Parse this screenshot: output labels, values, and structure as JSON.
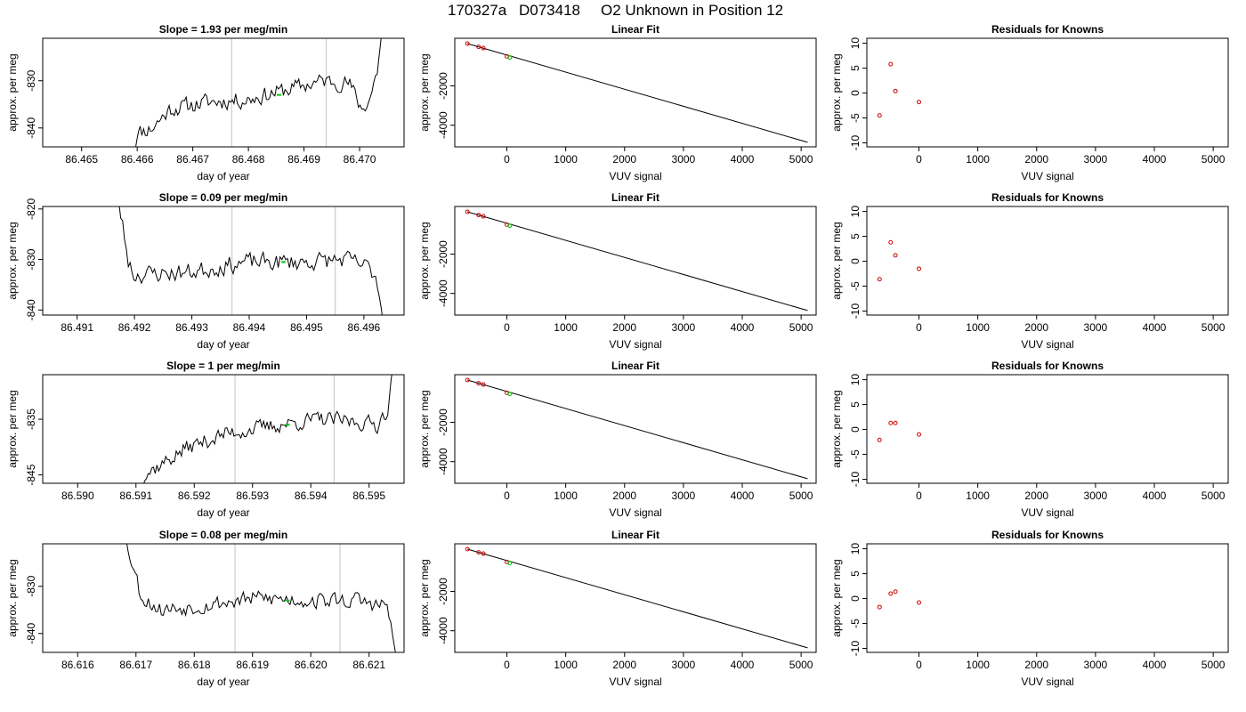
{
  "title": {
    "run": "170327a",
    "tank": "D073418",
    "text": "O2 Unknown in Position  12"
  },
  "colors": {
    "trace": "#000000",
    "window": "#cccccc",
    "known": "#cc0000",
    "unknown": "#00cc00"
  },
  "chart_data": [
    {
      "type": "line",
      "row": 1,
      "col": 1,
      "title": "Slope =  1.93  per meg/min",
      "xlabel": "day of year",
      "ylabel": "approx. per meg",
      "xlim": [
        86.4643,
        86.4708
      ],
      "ylim": [
        -844,
        -821
      ],
      "xticks": [
        86.465,
        86.466,
        86.467,
        86.468,
        86.469,
        86.47
      ],
      "xtick_labels": [
        "86.465",
        "86.466",
        "86.467",
        "86.468",
        "86.469",
        "86.470"
      ],
      "yticks": [
        -840,
        -830
      ],
      "yticks_labels": [
        "-840",
        "-830"
      ],
      "window_lines": [
        86.4677,
        86.4694
      ],
      "unknown_point": {
        "x": 86.46855,
        "y": -833
      },
      "trace": {
        "x_start": 86.4659,
        "x_end": 86.4705,
        "n": 150,
        "seed": 11,
        "anchors": [
          [
            0,
            -850
          ],
          [
            0.02,
            -841
          ],
          [
            0.08,
            -840
          ],
          [
            0.15,
            -836
          ],
          [
            0.3,
            -834.5
          ],
          [
            0.45,
            -834
          ],
          [
            0.6,
            -832
          ],
          [
            0.75,
            -830
          ],
          [
            0.85,
            -830.5
          ],
          [
            0.9,
            -836
          ],
          [
            0.93,
            -834
          ],
          [
            0.96,
            -828
          ],
          [
            1,
            -810
          ]
        ],
        "amp": 1.6
      }
    },
    {
      "type": "scatter+line",
      "row": 1,
      "col": 2,
      "title": "Linear Fit",
      "xlabel": "VUV signal",
      "ylabel": "approx. per meg",
      "xlim": [
        -885,
        5255
      ],
      "ylim": [
        -5100,
        420
      ],
      "xticks": [
        0,
        1000,
        2000,
        3000,
        4000,
        5000
      ],
      "xtick_labels": [
        "0",
        "1000",
        "2000",
        "3000",
        "4000",
        "5000"
      ],
      "yticks": [
        -4000,
        -2000
      ],
      "yticks_labels": [
        "-4000",
        "-2000"
      ],
      "fit_line": {
        "x0": -670,
        "y0": 150,
        "x1": 5110,
        "y1": -4870
      },
      "knowns": [
        {
          "x": -670,
          "y": 150
        },
        {
          "x": -480,
          "y": -15
        },
        {
          "x": -400,
          "y": -80
        },
        {
          "x": 0,
          "y": -500
        }
      ],
      "unknowns": [
        {
          "x": 50,
          "y": -550
        }
      ]
    },
    {
      "type": "scatter",
      "row": 1,
      "col": 3,
      "title": "Residuals for Knowns",
      "xlabel": "VUV signal",
      "ylabel": "approx. per meg",
      "xlim": [
        -885,
        5255
      ],
      "ylim": [
        -10.8,
        11
      ],
      "xticks": [
        0,
        1000,
        2000,
        3000,
        4000,
        5000
      ],
      "xtick_labels": [
        "0",
        "1000",
        "2000",
        "3000",
        "4000",
        "5000"
      ],
      "yticks": [
        -10,
        -5,
        0,
        5,
        10
      ],
      "yticks_labels": [
        "-10",
        "-5",
        "0",
        "5",
        "10"
      ],
      "points": [
        {
          "x": -670,
          "y": -4.5
        },
        {
          "x": -480,
          "y": 5.8
        },
        {
          "x": -400,
          "y": 0.4
        },
        {
          "x": 0,
          "y": -1.8
        }
      ]
    },
    {
      "type": "line",
      "row": 2,
      "col": 1,
      "title": "Slope =  0.09  per meg/min",
      "xlabel": "day of year",
      "ylabel": "approx. per meg",
      "xlim": [
        86.4904,
        86.4967
      ],
      "ylim": [
        -841,
        -819.5
      ],
      "xticks": [
        86.491,
        86.492,
        86.493,
        86.494,
        86.495,
        86.496
      ],
      "xtick_labels": [
        "86.491",
        "86.492",
        "86.493",
        "86.494",
        "86.495",
        "86.496"
      ],
      "yticks": [
        -840,
        -830,
        -820
      ],
      "yticks_labels": [
        "-840",
        "-830",
        "-820"
      ],
      "window_lines": [
        86.4937,
        86.4955
      ],
      "unknown_point": {
        "x": 86.4946,
        "y": -830.5
      },
      "trace": {
        "x_start": 86.4915,
        "x_end": 86.4964,
        "n": 150,
        "seed": 23,
        "anchors": [
          [
            0,
            -810
          ],
          [
            0.05,
            -820
          ],
          [
            0.08,
            -830
          ],
          [
            0.1,
            -833
          ],
          [
            0.3,
            -832.5
          ],
          [
            0.5,
            -830.5
          ],
          [
            0.7,
            -830.5
          ],
          [
            0.85,
            -830
          ],
          [
            0.93,
            -831.5
          ],
          [
            0.96,
            -833
          ],
          [
            1,
            -845
          ]
        ],
        "amp": 1.6
      }
    },
    {
      "type": "scatter+line",
      "row": 2,
      "col": 2,
      "title": "Linear Fit",
      "xlabel": "VUV signal",
      "ylabel": "approx. per meg",
      "xlim": [
        -885,
        5255
      ],
      "ylim": [
        -5100,
        420
      ],
      "xticks": [
        0,
        1000,
        2000,
        3000,
        4000,
        5000
      ],
      "xtick_labels": [
        "0",
        "1000",
        "2000",
        "3000",
        "4000",
        "5000"
      ],
      "yticks": [
        -4000,
        -2000
      ],
      "yticks_labels": [
        "-4000",
        "-2000"
      ],
      "fit_line": {
        "x0": -670,
        "y0": 150,
        "x1": 5110,
        "y1": -4870
      },
      "knowns": [
        {
          "x": -670,
          "y": 150
        },
        {
          "x": -480,
          "y": -15
        },
        {
          "x": -400,
          "y": -80
        },
        {
          "x": 0,
          "y": -500
        }
      ],
      "unknowns": [
        {
          "x": 50,
          "y": -550
        }
      ]
    },
    {
      "type": "scatter",
      "row": 2,
      "col": 3,
      "title": "Residuals for Knowns",
      "xlabel": "VUV signal",
      "ylabel": "approx. per meg",
      "xlim": [
        -885,
        5255
      ],
      "ylim": [
        -10.8,
        11
      ],
      "xticks": [
        0,
        1000,
        2000,
        3000,
        4000,
        5000
      ],
      "xtick_labels": [
        "0",
        "1000",
        "2000",
        "3000",
        "4000",
        "5000"
      ],
      "yticks": [
        -10,
        -5,
        0,
        5,
        10
      ],
      "yticks_labels": [
        "-10",
        "-5",
        "0",
        "5",
        "10"
      ],
      "points": [
        {
          "x": -670,
          "y": -3.6
        },
        {
          "x": -480,
          "y": 3.8
        },
        {
          "x": -400,
          "y": 1.2
        },
        {
          "x": 0,
          "y": -1.5
        }
      ]
    },
    {
      "type": "line",
      "row": 3,
      "col": 1,
      "title": "Slope =  1  per meg/min",
      "xlabel": "day of year",
      "ylabel": "approx. per meg",
      "xlim": [
        86.5894,
        86.5956
      ],
      "ylim": [
        -846.5,
        -827
      ],
      "xticks": [
        86.59,
        86.591,
        86.592,
        86.593,
        86.594,
        86.595
      ],
      "xtick_labels": [
        "86.590",
        "86.591",
        "86.592",
        "86.593",
        "86.594",
        "86.595"
      ],
      "yticks": [
        -845,
        -835
      ],
      "yticks_labels": [
        "-845",
        "-835"
      ],
      "window_lines": [
        86.5927,
        86.5944
      ],
      "unknown_point": {
        "x": 86.5936,
        "y": -836
      },
      "trace": {
        "x_start": 86.591,
        "x_end": 86.5955,
        "n": 150,
        "seed": 37,
        "anchors": [
          [
            0,
            -848
          ],
          [
            0.03,
            -845
          ],
          [
            0.1,
            -843
          ],
          [
            0.2,
            -840
          ],
          [
            0.35,
            -837.5
          ],
          [
            0.55,
            -836
          ],
          [
            0.7,
            -835
          ],
          [
            0.85,
            -835.5
          ],
          [
            0.92,
            -836
          ],
          [
            0.96,
            -833
          ],
          [
            1,
            -820
          ]
        ],
        "amp": 1.3
      }
    },
    {
      "type": "scatter+line",
      "row": 3,
      "col": 2,
      "title": "Linear Fit",
      "xlabel": "VUV signal",
      "ylabel": "approx. per meg",
      "xlim": [
        -885,
        5255
      ],
      "ylim": [
        -5100,
        420
      ],
      "xticks": [
        0,
        1000,
        2000,
        3000,
        4000,
        5000
      ],
      "xtick_labels": [
        "0",
        "1000",
        "2000",
        "3000",
        "4000",
        "5000"
      ],
      "yticks": [
        -4000,
        -2000
      ],
      "yticks_labels": [
        "-4000",
        "-2000"
      ],
      "fit_line": {
        "x0": -670,
        "y0": 150,
        "x1": 5110,
        "y1": -4870
      },
      "knowns": [
        {
          "x": -670,
          "y": 150
        },
        {
          "x": -480,
          "y": -15
        },
        {
          "x": -400,
          "y": -80
        },
        {
          "x": 0,
          "y": -500
        }
      ],
      "unknowns": [
        {
          "x": 50,
          "y": -550
        }
      ]
    },
    {
      "type": "scatter",
      "row": 3,
      "col": 3,
      "title": "Residuals for Knowns",
      "xlabel": "VUV signal",
      "ylabel": "approx. per meg",
      "xlim": [
        -885,
        5255
      ],
      "ylim": [
        -10.8,
        11
      ],
      "xticks": [
        0,
        1000,
        2000,
        3000,
        4000,
        5000
      ],
      "xtick_labels": [
        "0",
        "1000",
        "2000",
        "3000",
        "4000",
        "5000"
      ],
      "yticks": [
        -10,
        -5,
        0,
        5,
        10
      ],
      "yticks_labels": [
        "-10",
        "-5",
        "0",
        "5",
        "10"
      ],
      "points": [
        {
          "x": -670,
          "y": -2.1
        },
        {
          "x": -480,
          "y": 1.3
        },
        {
          "x": -400,
          "y": 1.3
        },
        {
          "x": 0,
          "y": -1.0
        }
      ]
    },
    {
      "type": "line",
      "row": 4,
      "col": 1,
      "title": "Slope =  0.08  per meg/min",
      "xlabel": "day of year",
      "ylabel": "approx. per meg",
      "xlim": [
        86.6154,
        86.6216
      ],
      "ylim": [
        -844,
        -821
      ],
      "xticks": [
        86.616,
        86.617,
        86.618,
        86.619,
        86.62,
        86.621
      ],
      "xtick_labels": [
        "86.616",
        "86.617",
        "86.618",
        "86.619",
        "86.620",
        "86.621"
      ],
      "yticks": [
        -840,
        -830
      ],
      "yticks_labels": [
        "-840",
        "-830"
      ],
      "window_lines": [
        86.6187,
        86.6205
      ],
      "unknown_point": {
        "x": 86.6196,
        "y": -833
      },
      "trace": {
        "x_start": 86.6167,
        "x_end": 86.6215,
        "n": 150,
        "seed": 53,
        "anchors": [
          [
            0,
            -815
          ],
          [
            0.05,
            -825
          ],
          [
            0.08,
            -832
          ],
          [
            0.15,
            -835
          ],
          [
            0.3,
            -834
          ],
          [
            0.5,
            -832.5
          ],
          [
            0.7,
            -833
          ],
          [
            0.85,
            -833
          ],
          [
            0.93,
            -834
          ],
          [
            0.96,
            -834
          ],
          [
            1,
            -848
          ]
        ],
        "amp": 1.6
      }
    },
    {
      "type": "scatter+line",
      "row": 4,
      "col": 2,
      "title": "Linear Fit",
      "xlabel": "VUV signal",
      "ylabel": "approx. per meg",
      "xlim": [
        -885,
        5255
      ],
      "ylim": [
        -5100,
        420
      ],
      "xticks": [
        0,
        1000,
        2000,
        3000,
        4000,
        5000
      ],
      "xtick_labels": [
        "0",
        "1000",
        "2000",
        "3000",
        "4000",
        "5000"
      ],
      "yticks": [
        -4000,
        -2000
      ],
      "yticks_labels": [
        "-4000",
        "-2000"
      ],
      "fit_line": {
        "x0": -670,
        "y0": 150,
        "x1": 5110,
        "y1": -4870
      },
      "knowns": [
        {
          "x": -670,
          "y": 150
        },
        {
          "x": -480,
          "y": -15
        },
        {
          "x": -400,
          "y": -80
        },
        {
          "x": 0,
          "y": -500
        }
      ],
      "unknowns": [
        {
          "x": 50,
          "y": -550
        }
      ]
    },
    {
      "type": "scatter",
      "row": 4,
      "col": 3,
      "title": "Residuals for Knowns",
      "xlabel": "VUV signal",
      "ylabel": "approx. per meg",
      "xlim": [
        -885,
        5255
      ],
      "ylim": [
        -10.8,
        11
      ],
      "xticks": [
        0,
        1000,
        2000,
        3000,
        4000,
        5000
      ],
      "xtick_labels": [
        "0",
        "1000",
        "2000",
        "3000",
        "4000",
        "5000"
      ],
      "yticks": [
        -10,
        -5,
        0,
        5,
        10
      ],
      "yticks_labels": [
        "-10",
        "-5",
        "0",
        "5",
        "10"
      ],
      "points": [
        {
          "x": -670,
          "y": -1.7
        },
        {
          "x": -480,
          "y": 1.0
        },
        {
          "x": -400,
          "y": 1.4
        },
        {
          "x": 0,
          "y": -0.8
        }
      ]
    }
  ]
}
